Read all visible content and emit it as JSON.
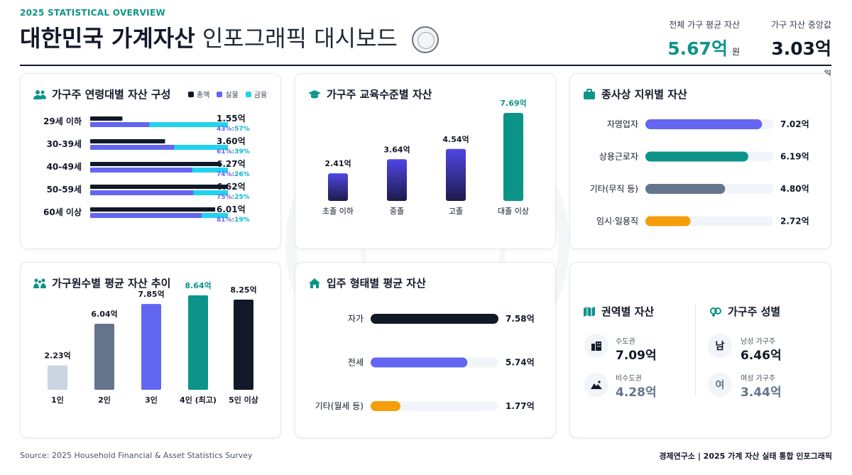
{
  "header": {
    "tag": "2025 STATISTICAL OVERVIEW",
    "title_strong": "대한민국 가계자산",
    "title_light": "인포그래픽 대시보드",
    "kpis": [
      {
        "label": "전체 가구 평균 자산",
        "value": "5.67억",
        "unit": "원"
      },
      {
        "label": "가구 자산 중앙값",
        "value": "3.03억",
        "unit": "원"
      }
    ]
  },
  "colors": {
    "total": "#111827",
    "real": "#6366f1",
    "finance": "#22d3ee",
    "teal": "#0d9488",
    "slate": "#64748b",
    "amber": "#f59e0b",
    "light_slate": "#cbd5e1",
    "track": "#f1f5f9"
  },
  "age_card": {
    "title": "가구주 연령대별 자산 구성",
    "icon": "users-icon",
    "legend": [
      "총액",
      "실물",
      "금융"
    ],
    "chart_data": {
      "type": "bar",
      "orientation": "horizontal",
      "categories": [
        "29세 이하",
        "30-39세",
        "40-49세",
        "50-59세",
        "60세 이상"
      ],
      "series": [
        {
          "name": "총액",
          "values": [
            1.55,
            3.6,
            6.27,
            6.62,
            6.01
          ]
        },
        {
          "name": "실물",
          "values": [
            43,
            61,
            74,
            75,
            81
          ]
        },
        {
          "name": "금융",
          "values": [
            57,
            39,
            26,
            25,
            19
          ]
        }
      ],
      "value_labels": [
        "1.55억",
        "3.60억",
        "6.27억",
        "6.62억",
        "6.01억"
      ],
      "ratio_labels": [
        {
          "real": "43%",
          "finance": "57%"
        },
        {
          "real": "61%",
          "finance": "39%"
        },
        {
          "real": "74%",
          "finance": "26%"
        },
        {
          "real": "75%",
          "finance": "25%"
        },
        {
          "real": "81%",
          "finance": "19%"
        }
      ],
      "xlim": [
        0,
        6.62
      ]
    }
  },
  "edu_card": {
    "title": "가구주 교육수준별 자산",
    "icon": "graduation-cap-icon",
    "chart_data": {
      "type": "bar",
      "categories": [
        "초졸 이하",
        "중졸",
        "고졸",
        "대졸 이상"
      ],
      "values": [
        2.41,
        3.64,
        4.54,
        7.69
      ],
      "value_labels": [
        "2.41억",
        "3.64억",
        "4.54억",
        "7.69억"
      ],
      "highlight_index": 3,
      "ylim": [
        0,
        7.69
      ]
    }
  },
  "job_card": {
    "title": "종사상 지위별 자산",
    "icon": "briefcase-icon",
    "chart_data": {
      "type": "bar",
      "orientation": "horizontal",
      "categories": [
        "자영업자",
        "상용근로자",
        "기타(무직 등)",
        "임시·일용직"
      ],
      "values": [
        7.02,
        6.19,
        4.8,
        2.72
      ],
      "value_labels": [
        "7.02억",
        "6.19억",
        "4.80억",
        "2.72억"
      ],
      "colors": [
        "#6366f1",
        "#0d9488",
        "#64748b",
        "#f59e0b"
      ],
      "xlim": [
        0,
        7.69
      ]
    }
  },
  "members_card": {
    "title": "가구원수별 평균 자산 추이",
    "icon": "family-icon",
    "chart_data": {
      "type": "bar",
      "categories": [
        "1인",
        "2인",
        "3인",
        "4인 (최고)",
        "5인 이상"
      ],
      "values": [
        2.23,
        6.04,
        7.85,
        8.64,
        8.25
      ],
      "value_labels": [
        "2.23억",
        "6.04억",
        "7.85억",
        "8.64억",
        "8.25억"
      ],
      "colors": [
        "#cbd5e1",
        "#64748b",
        "#6366f1",
        "#0d9488",
        "#111827"
      ],
      "highlight_index": 3,
      "ylim": [
        0,
        8.64
      ]
    }
  },
  "housing_card": {
    "title": "입주 형태별 평균 자산",
    "icon": "home-icon",
    "chart_data": {
      "type": "bar",
      "orientation": "horizontal",
      "categories": [
        "자가",
        "전세",
        "기타(월세 등)"
      ],
      "values": [
        7.58,
        5.74,
        1.77
      ],
      "value_labels": [
        "7.58억",
        "5.74억",
        "1.77억"
      ],
      "colors": [
        "#111827",
        "#6366f1",
        "#f59e0b"
      ],
      "xlim": [
        0,
        7.58
      ]
    }
  },
  "region_card": {
    "title": "권역별 자산",
    "icon": "map-icon",
    "items": [
      {
        "label": "수도권",
        "value": "7.09억",
        "icon": "buildings-icon",
        "color": "#111827"
      },
      {
        "label": "비수도권",
        "value": "4.28억",
        "icon": "mountain-icon",
        "color": "#64748b"
      }
    ]
  },
  "gender_card": {
    "title": "가구주 성별",
    "icon": "gender-icon",
    "items": [
      {
        "label": "남성 가구주",
        "value": "6.46억",
        "glyph": "남",
        "color": "#111827"
      },
      {
        "label": "여성 가구주",
        "value": "3.44억",
        "glyph": "여",
        "color": "#64748b"
      }
    ]
  },
  "footer": {
    "source": "Source: 2025 Household Financial & Asset Statistics Survey",
    "credit": "경제연구소 | 2025 가계 자산 실태 통합 인포그래픽"
  }
}
